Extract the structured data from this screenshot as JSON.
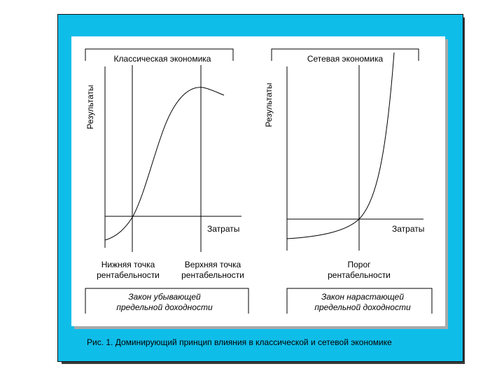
{
  "caption": "Рис. 1. Доминирующий принцип влияния в классической и сетевой экономике",
  "left": {
    "title": "Классическая экономика",
    "ylabel": "Результаты",
    "xlabel": "Затраты",
    "lower_point": [
      "Нижняя точка",
      "рентабельности"
    ],
    "upper_point": [
      "Верхняя точка",
      "рентабельности"
    ],
    "law": [
      "Закон убывающей",
      "предельной доходности"
    ]
  },
  "right": {
    "title": "Сетевая экономика",
    "ylabel": "Результаты",
    "xlabel": "Затраты",
    "threshold": [
      "Порог",
      "рентабельности"
    ],
    "law": [
      "Закон нарастающей",
      "предельной доходности"
    ]
  }
}
